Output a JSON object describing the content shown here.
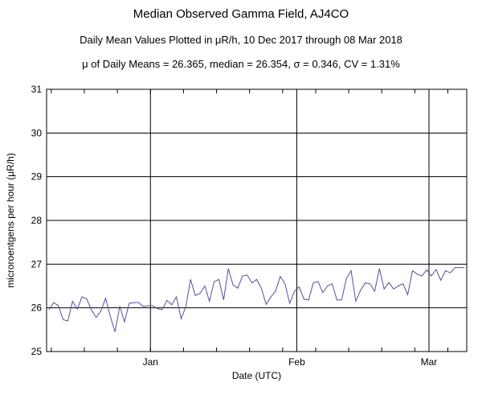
{
  "chart_data": {
    "type": "line",
    "title": "Median Observed Gamma Field, AJ4CO",
    "subtitle": "Daily Mean Values Plotted in μR/h, 10 Dec 2017 through 08 Mar 2018",
    "stats_line": "μ of Daily Means = 26.365,   median = 26.354,   σ = 0.346,   CV = 1.31%",
    "xlabel": "Date (UTC)",
    "ylabel": "microroentgens per hour (μR/h)",
    "ylim": [
      25,
      31
    ],
    "xlim": [
      "2017-12-10",
      "2018-03-08"
    ],
    "x_ticks": [
      "Jan",
      "Feb",
      "Mar"
    ],
    "y_ticks": [
      25,
      26,
      27,
      28,
      29,
      30,
      31
    ],
    "grid": true,
    "line_color": "#5050a0",
    "series": [
      {
        "x_start": "2017-12-10",
        "values": [
          25.95,
          26.12,
          26.05,
          25.73,
          25.7,
          26.15,
          25.97,
          26.25,
          26.2,
          25.95,
          25.78,
          25.93,
          26.22,
          25.8,
          25.45,
          26.04,
          25.68,
          26.1,
          26.12,
          26.12,
          26.03,
          26.05,
          26.05,
          25.98,
          25.96,
          26.17,
          26.07,
          26.25,
          25.75,
          26.03,
          26.65,
          26.28,
          26.33,
          26.5,
          26.15,
          26.6,
          26.65,
          26.18,
          26.9,
          26.52,
          26.45,
          26.73,
          26.75,
          26.57,
          26.65,
          26.45,
          26.08,
          26.25,
          26.38,
          26.72,
          26.55,
          26.1,
          26.38,
          26.48,
          26.2,
          26.18,
          26.57,
          26.6,
          26.35,
          26.5,
          26.55,
          26.18,
          26.18,
          26.67,
          26.85,
          26.15,
          26.4,
          26.57,
          26.55,
          26.38,
          26.9,
          26.43,
          26.58,
          26.43,
          26.5,
          26.55,
          26.3,
          26.85,
          26.77,
          26.73,
          26.87,
          26.73,
          26.88,
          26.63,
          26.85,
          26.8,
          26.92,
          26.92,
          26.92
        ]
      }
    ]
  }
}
